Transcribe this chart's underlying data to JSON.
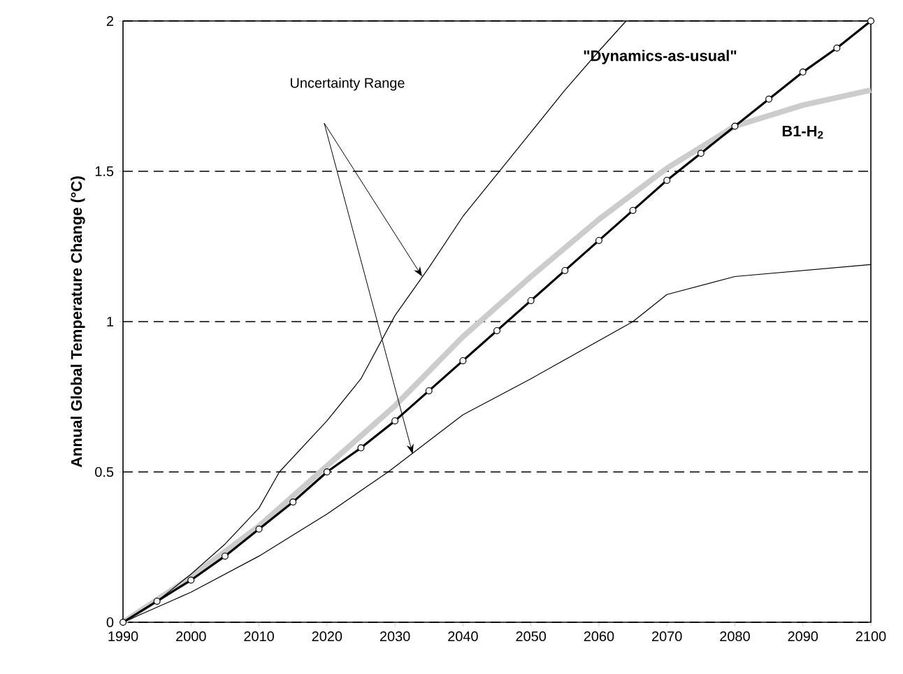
{
  "chart_data": {
    "type": "line",
    "xlabel": null,
    "ylabel": "Annual Global Temperature Change (°C)",
    "xlim": [
      1990,
      2100
    ],
    "ylim": [
      0,
      2
    ],
    "xticks": [
      1990,
      2000,
      2010,
      2020,
      2030,
      2040,
      2050,
      2060,
      2070,
      2080,
      2090,
      2100
    ],
    "yticks": [
      0,
      0.5,
      1,
      1.5,
      2
    ],
    "grid": "y",
    "legend": false,
    "annotations": [
      "Uncertainty Range"
    ],
    "series": [
      {
        "color": "#000000",
        "marker": "none",
        "x": [
          1990,
          1995,
          2000,
          2005,
          2010,
          2013,
          2020,
          2025,
          2030,
          2035,
          2040,
          2045,
          2050,
          2055,
          2060,
          2064
        ],
        "values": [
          0,
          0.07,
          0.16,
          0.26,
          0.38,
          0.5,
          0.67,
          0.81,
          1.02,
          1.18,
          1.35,
          1.49,
          1.63,
          1.77,
          1.9,
          2.0
        ]
      },
      {
        "color": "#000000",
        "marker": "none",
        "x": [
          1990,
          2000,
          2010,
          2020,
          2029,
          2040,
          2050,
          2065,
          2070,
          2080,
          2090,
          2100
        ],
        "values": [
          0,
          0.1,
          0.22,
          0.36,
          0.5,
          0.69,
          0.81,
          1.0,
          1.09,
          1.15,
          1.17,
          1.19
        ]
      },
      {
        "name": "B1-H$_{2}$",
        "color": "#cccccc",
        "marker": "none",
        "x": [
          1990,
          2000,
          2010,
          2020,
          2030,
          2040,
          2050,
          2060,
          2070,
          2080,
          2090,
          2100
        ],
        "values": [
          0,
          0.15,
          0.32,
          0.52,
          0.72,
          0.95,
          1.15,
          1.34,
          1.51,
          1.65,
          1.72,
          1.77
        ]
      },
      {
        "name": "\"Dynamics-as-usual\"",
        "color": "#000000",
        "marker": "circle",
        "x": [
          1990,
          1995,
          2000,
          2005,
          2010,
          2015,
          2020,
          2025,
          2030,
          2035,
          2040,
          2045,
          2050,
          2055,
          2060,
          2065,
          2070,
          2075,
          2080,
          2085,
          2090,
          2095,
          2100
        ],
        "values": [
          0,
          0.07,
          0.14,
          0.22,
          0.31,
          0.4,
          0.5,
          0.58,
          0.67,
          0.77,
          0.87,
          0.97,
          1.07,
          1.17,
          1.27,
          1.37,
          1.47,
          1.56,
          1.65,
          1.74,
          1.83,
          1.91,
          2.0
        ]
      }
    ]
  }
}
